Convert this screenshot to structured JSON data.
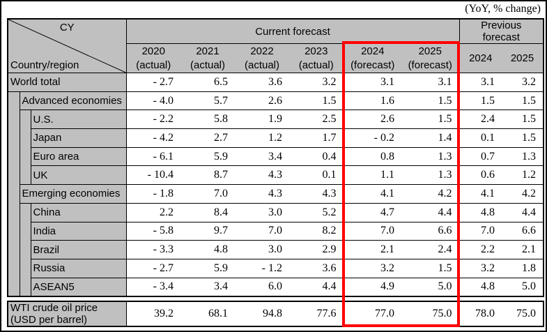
{
  "note": "(YoY, % change)",
  "colors": {
    "highlight_red": "#ff0000",
    "header_gray": "#c0c0c0"
  },
  "corner": {
    "top_label": "CY",
    "bottom_label": "Country/region"
  },
  "headers": {
    "current": "Current forecast",
    "previous_line1": "Previous",
    "previous_line2": "forecast",
    "year_cols": [
      {
        "year": "2020",
        "sub": "(actual)"
      },
      {
        "year": "2021",
        "sub": "(actual)"
      },
      {
        "year": "2022",
        "sub": "(actual)"
      },
      {
        "year": "2023",
        "sub": "(actual)"
      },
      {
        "year": "2024",
        "sub": "(forecast)"
      },
      {
        "year": "2025",
        "sub": "(forecast)"
      }
    ],
    "previous_years": [
      "2024",
      "2025"
    ]
  },
  "rows": [
    {
      "label": "World total",
      "indent": 0,
      "values": [
        "- 2.7",
        "6.5",
        "3.6",
        "3.2",
        "3.1",
        "3.1",
        "3.1",
        "3.2"
      ]
    },
    {
      "label": "Advanced economies",
      "indent": 1,
      "values": [
        "- 4.0",
        "5.7",
        "2.6",
        "1.5",
        "1.6",
        "1.5",
        "1.5",
        "1.5"
      ]
    },
    {
      "label": "U.S.",
      "indent": 2,
      "values": [
        "- 2.2",
        "5.8",
        "1.9",
        "2.5",
        "2.6",
        "1.5",
        "2.4",
        "1.5"
      ]
    },
    {
      "label": "Japan",
      "indent": 2,
      "values": [
        "- 4.2",
        "2.7",
        "1.2",
        "1.7",
        "- 0.2",
        "1.4",
        "0.1",
        "1.5"
      ]
    },
    {
      "label": "Euro area",
      "indent": 2,
      "values": [
        "- 6.1",
        "5.9",
        "3.4",
        "0.4",
        "0.8",
        "1.3",
        "0.7",
        "1.3"
      ]
    },
    {
      "label": "UK",
      "indent": 2,
      "values": [
        "- 10.4",
        "8.7",
        "4.3",
        "0.1",
        "1.1",
        "1.3",
        "0.6",
        "1.2"
      ]
    },
    {
      "label": "Emerging economies",
      "indent": 1,
      "values": [
        "- 1.8",
        "7.0",
        "4.3",
        "4.3",
        "4.1",
        "4.2",
        "4.1",
        "4.2"
      ]
    },
    {
      "label": "China",
      "indent": 2,
      "values": [
        "2.2",
        "8.4",
        "3.0",
        "5.2",
        "4.7",
        "4.4",
        "4.8",
        "4.4"
      ]
    },
    {
      "label": "India",
      "indent": 2,
      "values": [
        "- 5.8",
        "9.7",
        "7.0",
        "8.2",
        "7.0",
        "6.6",
        "7.0",
        "6.6"
      ]
    },
    {
      "label": "Brazil",
      "indent": 2,
      "values": [
        "- 3.3",
        "4.8",
        "3.0",
        "2.9",
        "2.1",
        "2.4",
        "2.2",
        "2.1"
      ]
    },
    {
      "label": "Russia",
      "indent": 2,
      "values": [
        "- 2.7",
        "5.9",
        "- 1.2",
        "3.6",
        "3.2",
        "1.5",
        "3.2",
        "1.8"
      ]
    },
    {
      "label": "ASEAN5",
      "indent": 2,
      "values": [
        "- 3.4",
        "3.4",
        "6.0",
        "4.4",
        "4.9",
        "5.0",
        "4.8",
        "5.0"
      ]
    }
  ],
  "wti": {
    "label_line1": "WTI crude oil price",
    "label_line2": "(USD per barrel)",
    "values": [
      "39.2",
      "68.1",
      "94.8",
      "77.6",
      "77.0",
      "75.0",
      "78.0",
      "75.0"
    ]
  }
}
